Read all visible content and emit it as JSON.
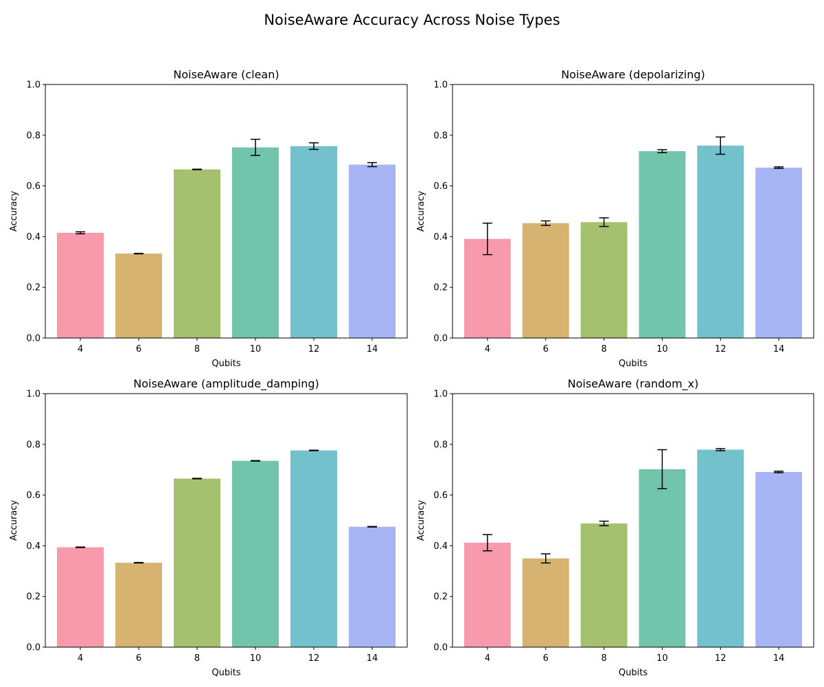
{
  "figure": {
    "title": "NoiseAware Accuracy Across Noise Types"
  },
  "colors": [
    "#f79aac",
    "#d6b370",
    "#a5c170",
    "#72c5ab",
    "#72c1cc",
    "#a8b5f5"
  ],
  "chart_data": [
    {
      "type": "bar",
      "title": "NoiseAware (clean)",
      "xlabel": "Qubits",
      "ylabel": "Accuracy",
      "ylim": [
        0,
        1.0
      ],
      "yticks": [
        "0.0",
        "0.2",
        "0.4",
        "0.6",
        "0.8",
        "1.0"
      ],
      "categories": [
        "4",
        "6",
        "8",
        "10",
        "12",
        "14"
      ],
      "values": [
        0.415,
        0.333,
        0.665,
        0.752,
        0.757,
        0.684
      ],
      "errors": [
        0.004,
        0.001,
        0.001,
        0.032,
        0.013,
        0.008
      ]
    },
    {
      "type": "bar",
      "title": "NoiseAware (depolarizing)",
      "xlabel": "Qubits",
      "ylabel": "Accuracy",
      "ylim": [
        0,
        1.0
      ],
      "yticks": [
        "0.0",
        "0.2",
        "0.4",
        "0.6",
        "0.8",
        "1.0"
      ],
      "categories": [
        "4",
        "6",
        "8",
        "10",
        "12",
        "14"
      ],
      "values": [
        0.391,
        0.453,
        0.457,
        0.737,
        0.759,
        0.672
      ],
      "errors": [
        0.062,
        0.009,
        0.017,
        0.006,
        0.034,
        0.003
      ]
    },
    {
      "type": "bar",
      "title": "NoiseAware (amplitude_damping)",
      "xlabel": "Qubits",
      "ylabel": "Accuracy",
      "ylim": [
        0,
        1.0
      ],
      "yticks": [
        "0.0",
        "0.2",
        "0.4",
        "0.6",
        "0.8",
        "1.0"
      ],
      "categories": [
        "4",
        "6",
        "8",
        "10",
        "12",
        "14"
      ],
      "values": [
        0.394,
        0.333,
        0.665,
        0.735,
        0.776,
        0.475
      ],
      "errors": [
        0.001,
        0.001,
        0.001,
        0.001,
        0.001,
        0.001
      ]
    },
    {
      "type": "bar",
      "title": "NoiseAware (random_x)",
      "xlabel": "Qubits",
      "ylabel": "Accuracy",
      "ylim": [
        0,
        1.0
      ],
      "yticks": [
        "0.0",
        "0.2",
        "0.4",
        "0.6",
        "0.8",
        "1.0"
      ],
      "categories": [
        "4",
        "6",
        "8",
        "10",
        "12",
        "14"
      ],
      "values": [
        0.412,
        0.35,
        0.488,
        0.702,
        0.779,
        0.691
      ],
      "errors": [
        0.032,
        0.018,
        0.009,
        0.077,
        0.004,
        0.003
      ]
    }
  ]
}
